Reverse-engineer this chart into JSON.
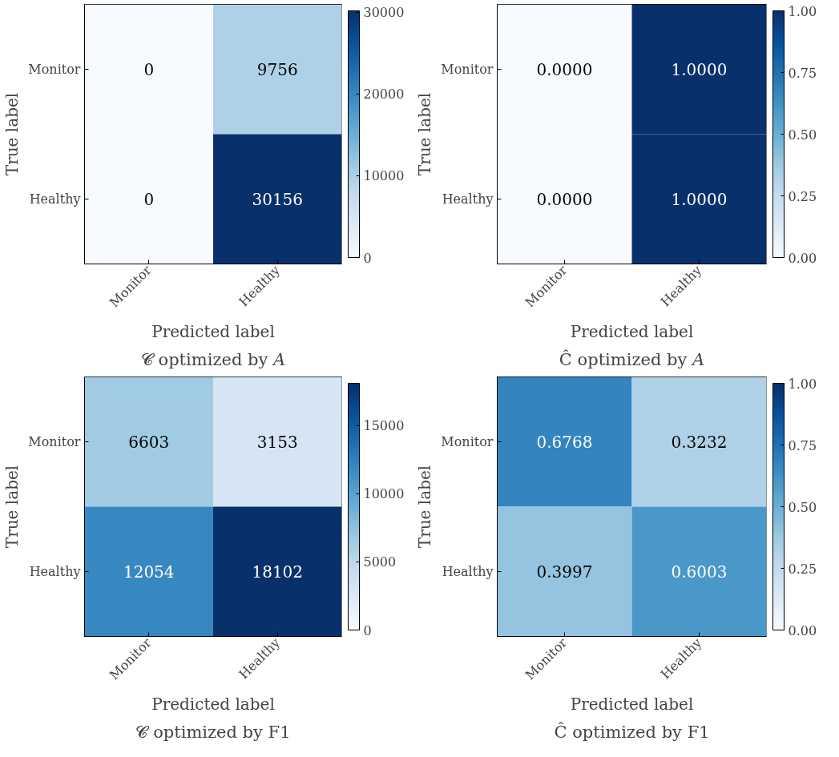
{
  "chart_data": [
    {
      "type": "heatmap",
      "title": "𝓒 optimized by 𝐴",
      "xlabel": "Predicted label",
      "ylabel": "True label",
      "categories": [
        "Monitor",
        "Healthy"
      ],
      "y_categories": [
        "Monitor",
        "Healthy"
      ],
      "cells": [
        [
          0,
          9756
        ],
        [
          0,
          30156
        ]
      ],
      "data_labels": true,
      "clim": [
        0,
        30156
      ],
      "cticks": [
        0,
        10000,
        20000,
        30000
      ]
    },
    {
      "type": "heatmap",
      "title": "Ĉ optimized by 𝐴",
      "xlabel": "Predicted label",
      "ylabel": "True label",
      "categories": [
        "Monitor",
        "Healthy"
      ],
      "y_categories": [
        "Monitor",
        "Healthy"
      ],
      "cells": [
        [
          0.0,
          1.0
        ],
        [
          0.0,
          1.0
        ]
      ],
      "cell_labels": [
        [
          "0.0000",
          "1.0000"
        ],
        [
          "0.0000",
          "1.0000"
        ]
      ],
      "clim": [
        0,
        1
      ],
      "cticks": [
        {
          "value": 0,
          "label": "0.00"
        },
        {
          "value": 0.25,
          "label": "0.25"
        },
        {
          "value": 0.5,
          "label": "0.50"
        },
        {
          "value": 0.75,
          "label": "0.75"
        },
        {
          "value": 1,
          "label": "1.00"
        }
      ]
    },
    {
      "type": "heatmap",
      "title": "𝓒 optimized by F1",
      "xlabel": "Predicted label",
      "ylabel": "True label",
      "categories": [
        "Monitor",
        "Healthy"
      ],
      "y_categories": [
        "Monitor",
        "Healthy"
      ],
      "cells": [
        [
          6603,
          3153
        ],
        [
          12054,
          18102
        ]
      ],
      "data_labels": true,
      "clim": [
        0,
        18102
      ],
      "cticks": [
        0,
        5000,
        10000,
        15000
      ]
    },
    {
      "type": "heatmap",
      "title": "Ĉ optimized by F1",
      "xlabel": "Predicted label",
      "ylabel": "True label",
      "categories": [
        "Monitor",
        "Healthy"
      ],
      "y_categories": [
        "Monitor",
        "Healthy"
      ],
      "cells": [
        [
          0.6768,
          0.3232
        ],
        [
          0.3997,
          0.6003
        ]
      ],
      "cell_labels": [
        [
          "0.6768",
          "0.3232"
        ],
        [
          "0.3997",
          "0.6003"
        ]
      ],
      "clim": [
        0,
        1
      ],
      "cticks": [
        {
          "value": 0,
          "label": "0.00"
        },
        {
          "value": 0.25,
          "label": "0.25"
        },
        {
          "value": 0.5,
          "label": "0.50"
        },
        {
          "value": 0.75,
          "label": "0.75"
        },
        {
          "value": 1,
          "label": "1.00"
        }
      ]
    }
  ]
}
